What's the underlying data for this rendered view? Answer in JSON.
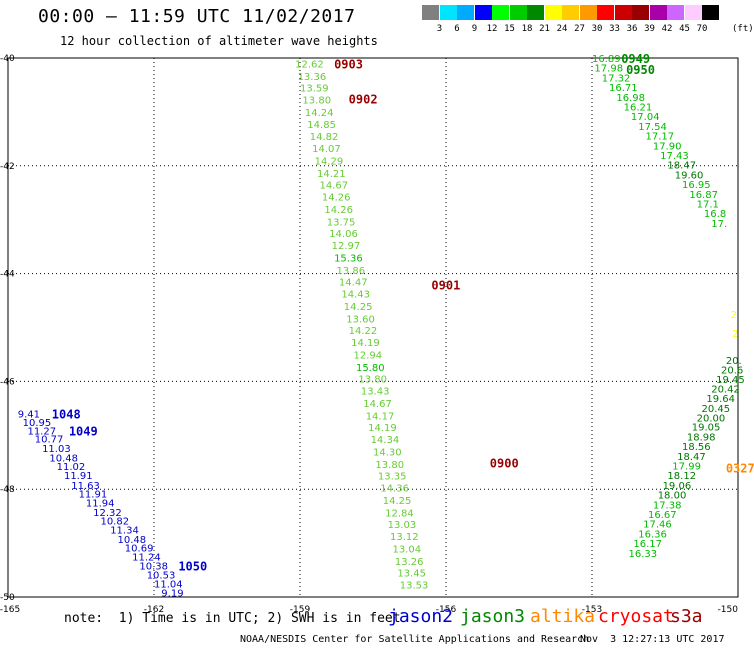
{
  "title": "00:00 — 11:59 UTC 11/02/2017",
  "subtitle": "12 hour collection of altimeter wave heights",
  "colorbar": {
    "ticks": [
      "3",
      "6",
      "9",
      "12",
      "15",
      "18",
      "21",
      "24",
      "27",
      "30",
      "33",
      "36",
      "39",
      "42",
      "45",
      "70"
    ],
    "unit": "(ft)",
    "colors": [
      "#808080",
      "#00e5ff",
      "#00aaff",
      "#0000ff",
      "#00ff00",
      "#00cc00",
      "#008800",
      "#ffff00",
      "#ffcc00",
      "#ff9900",
      "#ff0000",
      "#cc0000",
      "#990000",
      "#aa00aa",
      "#cc66ff",
      "#ffccff",
      "#000000"
    ]
  },
  "note": "note:  1) Time is in UTC; 2) SWH is in feet",
  "satellites": [
    {
      "name": "jason2",
      "color": "#0000cc"
    },
    {
      "name": "jason3",
      "color": "#008800"
    },
    {
      "name": "altika",
      "color": "#ff8800"
    },
    {
      "name": "cryosat",
      "color": "#ff0000"
    },
    {
      "name": "s3a",
      "color": "#990000"
    }
  ],
  "credit": "NOAA/NESDIS Center for Satellite Applications and Research",
  "timestamp": "Nov  3 12:27:13 UTC 2017",
  "chart_data": {
    "type": "scatter",
    "title": "00:00 — 11:59 UTC 11/02/2017",
    "subtitle": "12 hour collection of altimeter wave heights",
    "xlabel": "",
    "ylabel": "",
    "xlim": [
      -165,
      -150
    ],
    "ylim": [
      -50,
      -40
    ],
    "x_ticks": [
      "-165",
      "-162",
      "-159",
      "-156",
      "-153",
      "-150"
    ],
    "y_ticks": [
      "-40",
      "-42",
      "-44",
      "-46",
      "-48",
      "-50"
    ],
    "x_tick_values": [
      -165,
      -162,
      -159,
      -156,
      -153,
      -150
    ],
    "y_tick_values": [
      -40,
      -42,
      -44,
      -46,
      -48,
      -50
    ],
    "grid": true,
    "series": [
      {
        "name": "jason2",
        "points": [
          {
            "lon": -164.8,
            "lat": -46.6,
            "swh": "9.41"
          },
          {
            "lon": -164.7,
            "lat": -46.75,
            "swh": "10.95"
          },
          {
            "lon": -164.6,
            "lat": -46.91,
            "swh": "11.27"
          },
          {
            "lon": -164.45,
            "lat": -47.06,
            "swh": "10.77"
          },
          {
            "lon": -164.3,
            "lat": -47.24,
            "swh": "11.03"
          },
          {
            "lon": -164.15,
            "lat": -47.41,
            "swh": "10.48"
          },
          {
            "lon": -164.0,
            "lat": -47.57,
            "swh": "11.02"
          },
          {
            "lon": -163.85,
            "lat": -47.74,
            "swh": "11.91"
          },
          {
            "lon": -163.7,
            "lat": -47.92,
            "swh": "11.63"
          },
          {
            "lon": -163.55,
            "lat": -48.08,
            "swh": "11.91"
          },
          {
            "lon": -163.4,
            "lat": -48.25,
            "swh": "11.94"
          },
          {
            "lon": -163.25,
            "lat": -48.42,
            "swh": "12.32"
          },
          {
            "lon": -163.1,
            "lat": -48.58,
            "swh": "10.82"
          },
          {
            "lon": -162.9,
            "lat": -48.75,
            "swh": "11.34"
          },
          {
            "lon": -162.75,
            "lat": -48.92,
            "swh": "10.48"
          },
          {
            "lon": -162.6,
            "lat": -49.08,
            "swh": "10.69"
          },
          {
            "lon": -162.45,
            "lat": -49.25,
            "swh": "11.24"
          },
          {
            "lon": -162.3,
            "lat": -49.42,
            "swh": "10.38"
          },
          {
            "lon": -162.15,
            "lat": -49.58,
            "swh": "10.53"
          },
          {
            "lon": -162.0,
            "lat": -49.75,
            "swh": "11.04"
          },
          {
            "lon": -161.85,
            "lat": -49.92,
            "swh": "9.19"
          }
        ]
      },
      {
        "name": "jason3",
        "points": [
          {
            "lon": -159.1,
            "lat": -40.1,
            "swh": "12.62"
          },
          {
            "lon": -159.05,
            "lat": -40.33,
            "swh": "13.36"
          },
          {
            "lon": -159.0,
            "lat": -40.55,
            "swh": "13.59"
          },
          {
            "lon": -158.95,
            "lat": -40.77,
            "swh": "13.80"
          },
          {
            "lon": -158.9,
            "lat": -41.0,
            "swh": "14.24"
          },
          {
            "lon": -158.85,
            "lat": -41.22,
            "swh": "14.85"
          },
          {
            "lon": -158.8,
            "lat": -41.45,
            "swh": "14.82"
          },
          {
            "lon": -158.75,
            "lat": -41.67,
            "swh": "14.07"
          },
          {
            "lon": -158.7,
            "lat": -41.9,
            "swh": "14.29"
          },
          {
            "lon": -158.65,
            "lat": -42.13,
            "swh": "14.21"
          },
          {
            "lon": -158.6,
            "lat": -42.35,
            "swh": "14.67"
          },
          {
            "lon": -158.55,
            "lat": -42.57,
            "swh": "14.26"
          },
          {
            "lon": -158.5,
            "lat": -42.8,
            "swh": "14.26"
          },
          {
            "lon": -158.45,
            "lat": -43.03,
            "swh": "13.75"
          },
          {
            "lon": -158.4,
            "lat": -43.25,
            "swh": "14.06"
          },
          {
            "lon": -158.35,
            "lat": -43.47,
            "swh": "12.97"
          },
          {
            "lon": -158.3,
            "lat": -43.7,
            "swh": "15.36"
          },
          {
            "lon": -158.25,
            "lat": -43.93,
            "swh": "13.86"
          },
          {
            "lon": -158.2,
            "lat": -44.15,
            "swh": "14.47"
          },
          {
            "lon": -158.15,
            "lat": -44.37,
            "swh": "14.43"
          },
          {
            "lon": -158.1,
            "lat": -44.6,
            "swh": "14.25"
          },
          {
            "lon": -158.05,
            "lat": -44.83,
            "swh": "13.60"
          },
          {
            "lon": -158.0,
            "lat": -45.05,
            "swh": "14.22"
          },
          {
            "lon": -157.95,
            "lat": -45.27,
            "swh": "14.19"
          },
          {
            "lon": -157.9,
            "lat": -45.5,
            "swh": "12.94"
          },
          {
            "lon": -157.85,
            "lat": -45.73,
            "swh": "15.80"
          },
          {
            "lon": -157.8,
            "lat": -45.95,
            "swh": "13.80"
          },
          {
            "lon": -157.75,
            "lat": -46.17,
            "swh": "13.43"
          },
          {
            "lon": -157.7,
            "lat": -46.4,
            "swh": "14.67"
          },
          {
            "lon": -157.65,
            "lat": -46.63,
            "swh": "14.17"
          },
          {
            "lon": -157.6,
            "lat": -46.85,
            "swh": "14.19"
          },
          {
            "lon": -157.55,
            "lat": -47.07,
            "swh": "14.34"
          },
          {
            "lon": -157.5,
            "lat": -47.3,
            "swh": "14.30"
          },
          {
            "lon": -157.45,
            "lat": -47.53,
            "swh": "13.80"
          },
          {
            "lon": -157.4,
            "lat": -47.75,
            "swh": "13.35"
          },
          {
            "lon": -157.35,
            "lat": -47.97,
            "swh": "14.36"
          },
          {
            "lon": -157.3,
            "lat": -48.2,
            "swh": "14.25"
          },
          {
            "lon": -157.25,
            "lat": -48.43,
            "swh": "12.84"
          },
          {
            "lon": -157.2,
            "lat": -48.65,
            "swh": "13.03"
          },
          {
            "lon": -157.15,
            "lat": -48.87,
            "swh": "13.12"
          },
          {
            "lon": -157.1,
            "lat": -49.1,
            "swh": "13.04"
          },
          {
            "lon": -157.05,
            "lat": -49.33,
            "swh": "13.26"
          },
          {
            "lon": -157.0,
            "lat": -49.55,
            "swh": "13.45"
          },
          {
            "lon": -156.95,
            "lat": -49.77,
            "swh": "13.53"
          },
          {
            "lon": -153.0,
            "lat": -40.0,
            "swh": "16.89"
          },
          {
            "lon": -152.95,
            "lat": -40.18,
            "swh": "17.98"
          },
          {
            "lon": -152.8,
            "lat": -40.36,
            "swh": "17.32"
          },
          {
            "lon": -152.65,
            "lat": -40.54,
            "swh": "16.71"
          },
          {
            "lon": -152.5,
            "lat": -40.72,
            "swh": "16.98"
          },
          {
            "lon": -152.35,
            "lat": -40.9,
            "swh": "16.21"
          },
          {
            "lon": -152.2,
            "lat": -41.08,
            "swh": "17.04"
          },
          {
            "lon": -152.05,
            "lat": -41.26,
            "swh": "17.54"
          },
          {
            "lon": -151.9,
            "lat": -41.44,
            "swh": "17.17"
          },
          {
            "lon": -151.75,
            "lat": -41.62,
            "swh": "17.90"
          },
          {
            "lon": -151.6,
            "lat": -41.8,
            "swh": "17.43"
          },
          {
            "lon": -151.45,
            "lat": -41.98,
            "swh": "18.47"
          },
          {
            "lon": -151.3,
            "lat": -42.16,
            "swh": "19.60"
          },
          {
            "lon": -151.15,
            "lat": -42.34,
            "swh": "16.95"
          },
          {
            "lon": -151.0,
            "lat": -42.52,
            "swh": "16.87"
          },
          {
            "lon": -150.85,
            "lat": -42.7,
            "swh": "17.1"
          },
          {
            "lon": -150.7,
            "lat": -42.88,
            "swh": "16.8"
          },
          {
            "lon": -150.55,
            "lat": -43.06,
            "swh": "17."
          },
          {
            "lon": -150.25,
            "lat": -45.6,
            "swh": "20."
          },
          {
            "lon": -150.35,
            "lat": -45.78,
            "swh": "20.6"
          },
          {
            "lon": -150.45,
            "lat": -45.96,
            "swh": "19.45"
          },
          {
            "lon": -150.55,
            "lat": -46.13,
            "swh": "20.42"
          },
          {
            "lon": -150.65,
            "lat": -46.31,
            "swh": "19.64"
          },
          {
            "lon": -150.75,
            "lat": -46.49,
            "swh": "20.45"
          },
          {
            "lon": -150.85,
            "lat": -46.67,
            "swh": "20.00"
          },
          {
            "lon": -150.95,
            "lat": -46.84,
            "swh": "19.05"
          },
          {
            "lon": -151.05,
            "lat": -47.02,
            "swh": "18.98"
          },
          {
            "lon": -151.15,
            "lat": -47.2,
            "swh": "18.56"
          },
          {
            "lon": -151.25,
            "lat": -47.38,
            "swh": "18.47"
          },
          {
            "lon": -151.35,
            "lat": -47.56,
            "swh": "17.99"
          },
          {
            "lon": -151.45,
            "lat": -47.74,
            "swh": "18.12"
          },
          {
            "lon": -151.55,
            "lat": -47.92,
            "swh": "19.06"
          },
          {
            "lon": -151.65,
            "lat": -48.1,
            "swh": "18.00"
          },
          {
            "lon": -151.75,
            "lat": -48.28,
            "swh": "17.38"
          },
          {
            "lon": -151.85,
            "lat": -48.46,
            "swh": "16.67"
          },
          {
            "lon": -151.95,
            "lat": -48.64,
            "swh": "17.46"
          },
          {
            "lon": -152.05,
            "lat": -48.82,
            "swh": "16.36"
          },
          {
            "lon": -152.15,
            "lat": -49.0,
            "swh": "16.17"
          },
          {
            "lon": -152.25,
            "lat": -49.18,
            "swh": "16.33"
          }
        ]
      },
      {
        "name": "altika",
        "points": [
          {
            "lon": -150.15,
            "lat": -44.75,
            "swh": "2"
          },
          {
            "lon": -150.12,
            "lat": -45.1,
            "swh": "2"
          }
        ]
      }
    ],
    "time_labels": [
      {
        "text": "0903",
        "lon": -158.3,
        "lat": -40.1,
        "color": "#990000"
      },
      {
        "text": "0902",
        "lon": -158.0,
        "lat": -40.75,
        "color": "#990000"
      },
      {
        "text": "0901",
        "lon": -156.3,
        "lat": -44.2,
        "color": "#990000"
      },
      {
        "text": "0900",
        "lon": -155.1,
        "lat": -47.5,
        "color": "#990000"
      },
      {
        "text": "0949",
        "lon": -152.4,
        "lat": -40.0,
        "color": "#008800"
      },
      {
        "text": "0950",
        "lon": -152.3,
        "lat": -40.2,
        "color": "#008800"
      },
      {
        "text": "1048",
        "lon": -164.1,
        "lat": -46.6,
        "color": "#0000cc"
      },
      {
        "text": "1049",
        "lon": -163.75,
        "lat": -46.91,
        "color": "#0000cc"
      },
      {
        "text": "1050",
        "lon": -161.5,
        "lat": -49.42,
        "color": "#0000cc"
      },
      {
        "text": "0327",
        "lon": -150.25,
        "lat": -47.6,
        "color": "#ff8800"
      }
    ]
  }
}
